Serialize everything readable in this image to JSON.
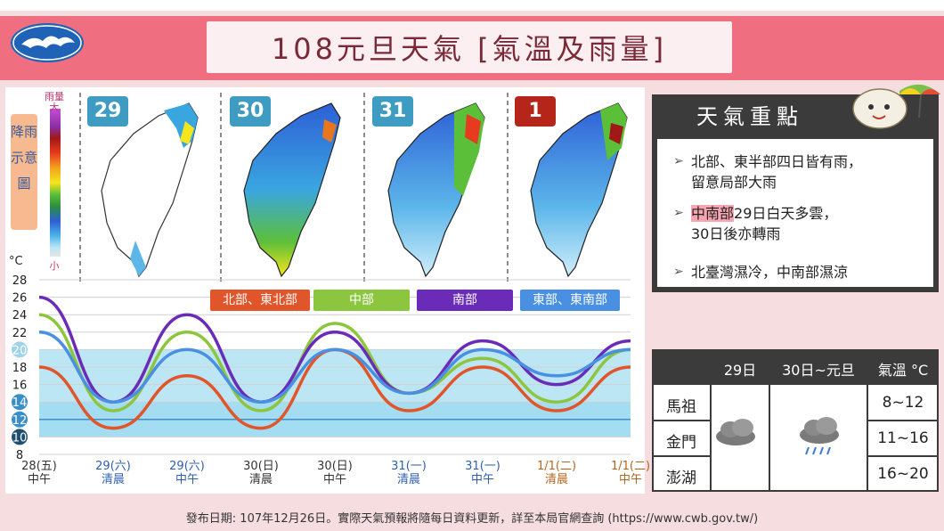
{
  "header": {
    "title": "108元旦天氣   [氣溫及雨量]"
  },
  "maps": {
    "days": [
      {
        "label": "29",
        "color": "#3e9bc1"
      },
      {
        "label": "30",
        "color": "#3e9bc1"
      },
      {
        "label": "31",
        "color": "#3e9bc1"
      },
      {
        "label": "1",
        "color": "#b52519"
      }
    ],
    "legend": {
      "label": "降雨示意圖",
      "top": "雨量大",
      "bottom": "小"
    }
  },
  "chart_data": {
    "type": "line",
    "ylabel": "°C",
    "ylim": [
      8,
      28
    ],
    "y_ticks": [
      "28",
      "26",
      "24",
      "22",
      "20",
      "18",
      "16",
      "14",
      "12",
      "10",
      "8"
    ],
    "highlighted_ticks": [
      "20",
      "14",
      "12",
      "10"
    ],
    "x": [
      "28(五) 中午",
      "29(六) 清晨",
      "29(六) 中午",
      "30(日) 清晨",
      "30(日) 中午",
      "31(一) 清晨",
      "31(一) 中午",
      "1/1(二) 清晨",
      "1/1(二) 中午"
    ],
    "x_ticks": [
      {
        "date": "28(五)",
        "time": "中午",
        "color": "#333333"
      },
      {
        "date": "29(六)",
        "time": "清晨",
        "color": "#2f5fb3"
      },
      {
        "date": "29(六)",
        "time": "中午",
        "color": "#2f5fb3"
      },
      {
        "date": "30(日)",
        "time": "清晨",
        "color": "#333333"
      },
      {
        "date": "30(日)",
        "time": "中午",
        "color": "#333333"
      },
      {
        "date": "31(一)",
        "time": "清晨",
        "color": "#2f5fb3"
      },
      {
        "date": "31(一)",
        "time": "中午",
        "color": "#2f5fb3"
      },
      {
        "date": "1/1(二)",
        "time": "清晨",
        "color": "#b5651d"
      },
      {
        "date": "1/1(二)",
        "time": "中午",
        "color": "#b5651d"
      }
    ],
    "series": [
      {
        "name": "北部、東北部",
        "color": "#e0552a",
        "values": [
          18,
          11,
          17,
          11,
          20,
          13,
          18,
          13,
          18
        ]
      },
      {
        "name": "中部",
        "color": "#8cc63f",
        "values": [
          24,
          13,
          22,
          13,
          23,
          15,
          19,
          14,
          20
        ]
      },
      {
        "name": "南部",
        "color": "#6a2bb8",
        "values": [
          26,
          14,
          24,
          14,
          22,
          15,
          21,
          16,
          21
        ]
      },
      {
        "name": "東部、東南部",
        "color": "#4a90e2",
        "values": [
          22,
          14,
          20,
          14,
          20,
          15,
          20,
          17,
          20
        ]
      }
    ]
  },
  "notes": {
    "title": "天氣重點",
    "items": [
      {
        "line1": "北部、東半部四日皆有雨，",
        "line2": "留意局部大雨"
      },
      {
        "highlight": "中南部",
        "line1_rest": "29日白天多雲，",
        "line2": "30日後亦轉雨"
      },
      {
        "line1": "北臺灣濕冷，中南部濕涼"
      }
    ]
  },
  "islands": {
    "headers": [
      "29日",
      "30日~元旦",
      "氣溫 °C"
    ],
    "rows": [
      {
        "name": "馬祖",
        "temp": "8~12"
      },
      {
        "name": "金門",
        "temp": "11~16"
      },
      {
        "name": "澎湖",
        "temp": "16~20"
      }
    ]
  },
  "footer": {
    "text": "發布日期: 107年12月26日。實際天氣預報將隨每日資料更新，詳至本局官網查詢 (https://www.cwb.gov.tw/)"
  }
}
